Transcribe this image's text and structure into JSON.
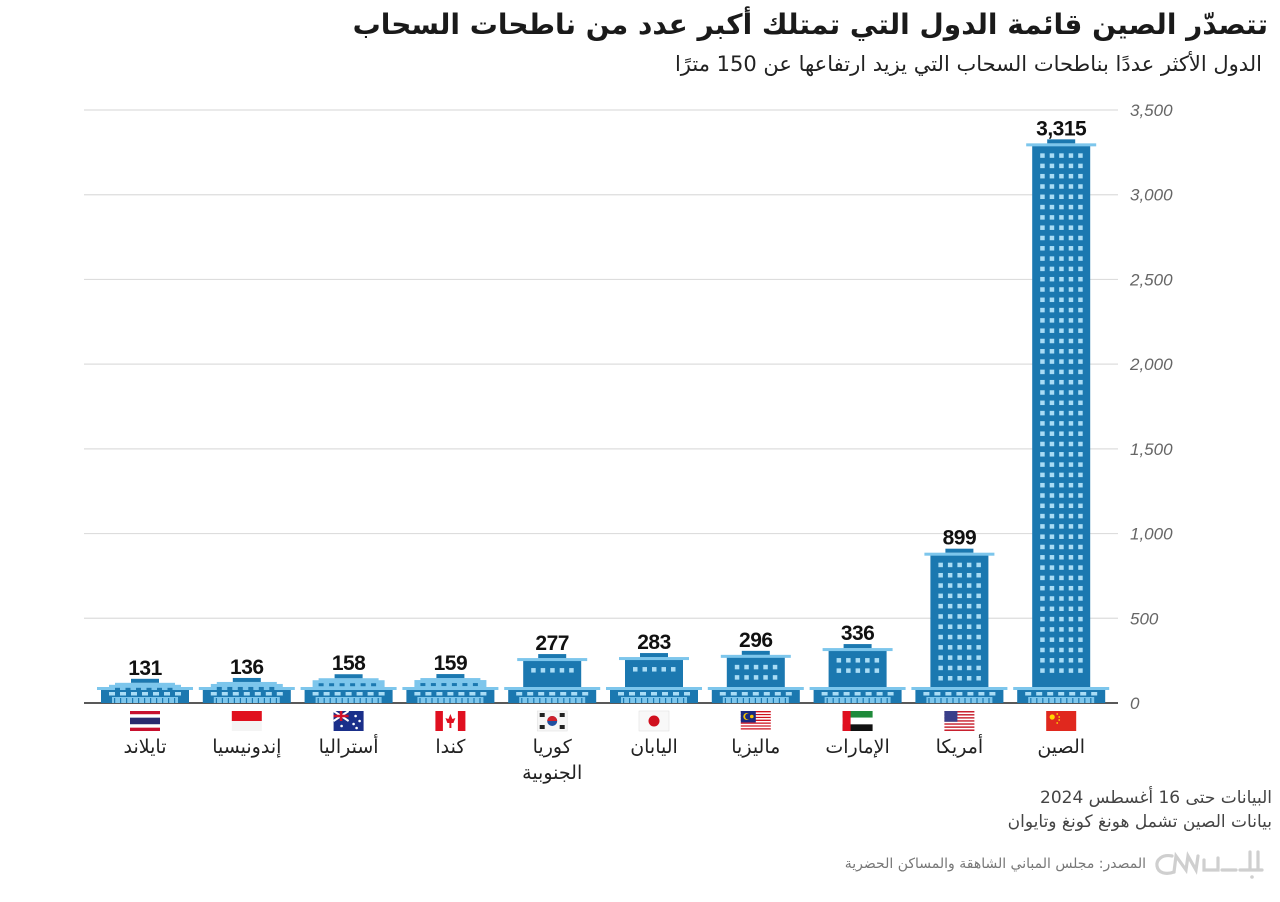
{
  "header": {
    "title": "تتصدّر الصين قائمة الدول التي تمتلك أكبر عدد من ناطحات السحاب",
    "subtitle": "الدول الأكثر عددًا بناطحات السحاب التي يزيد ارتفاعها عن 150 مترًا"
  },
  "chart_data": {
    "type": "bar",
    "title": "تتصدّر الصين قائمة الدول التي تمتلك أكبر عدد من ناطحات السحاب",
    "subtitle": "الدول الأكثر عددًا بناطحات السحاب التي يزيد ارتفاعها عن 150 مترًا",
    "xlabel": "",
    "ylabel": "",
    "ylim": [
      0,
      3500
    ],
    "yticks": [
      0,
      500,
      1000,
      1500,
      2000,
      2500,
      3000,
      3500
    ],
    "ytick_labels": [
      "0",
      "500",
      "1,000",
      "1,500",
      "2,000",
      "2,500",
      "3,000",
      "3,500"
    ],
    "grid": true,
    "yaxis_side": "right",
    "bar_style": "skyscraper-icon",
    "categories": [
      "تايلاند",
      "إندونيسيا",
      "أستراليا",
      "كندا",
      "كوريا الجنوبية",
      "اليابان",
      "ماليزيا",
      "الإمارات",
      "أمريكا",
      "الصين"
    ],
    "category_lines": [
      [
        "تايلاند"
      ],
      [
        "إندونيسيا"
      ],
      [
        "أستراليا"
      ],
      [
        "كندا"
      ],
      [
        "كوريا",
        "الجنوبية"
      ],
      [
        "اليابان"
      ],
      [
        "ماليزيا"
      ],
      [
        "الإمارات"
      ],
      [
        "أمريكا"
      ],
      [
        "الصين"
      ]
    ],
    "flags": [
      "thailand-flag",
      "indonesia-flag",
      "australia-flag",
      "canada-flag",
      "south-korea-flag",
      "japan-flag",
      "malaysia-flag",
      "uae-flag",
      "usa-flag",
      "china-flag"
    ],
    "values": [
      131,
      136,
      158,
      159,
      277,
      283,
      296,
      336,
      899,
      3315
    ],
    "value_labels": [
      "131",
      "136",
      "158",
      "159",
      "277",
      "283",
      "296",
      "336",
      "899",
      "3,315"
    ]
  },
  "colors": {
    "building_dark": "#1b78b0",
    "building_light": "#7dc6ec",
    "window": "#a9dcf5",
    "grid": "#dddddd",
    "axis": "#222222"
  },
  "footer": {
    "note_1": "البيانات حتى 16 أغسطس 2024",
    "note_2": "بيانات الصين تشمل هونغ كونغ وتايوان",
    "source": "المصدر: مجلس المباني الشاهقة والمساكن الحضرية",
    "logo": "بالعربية CNN"
  }
}
